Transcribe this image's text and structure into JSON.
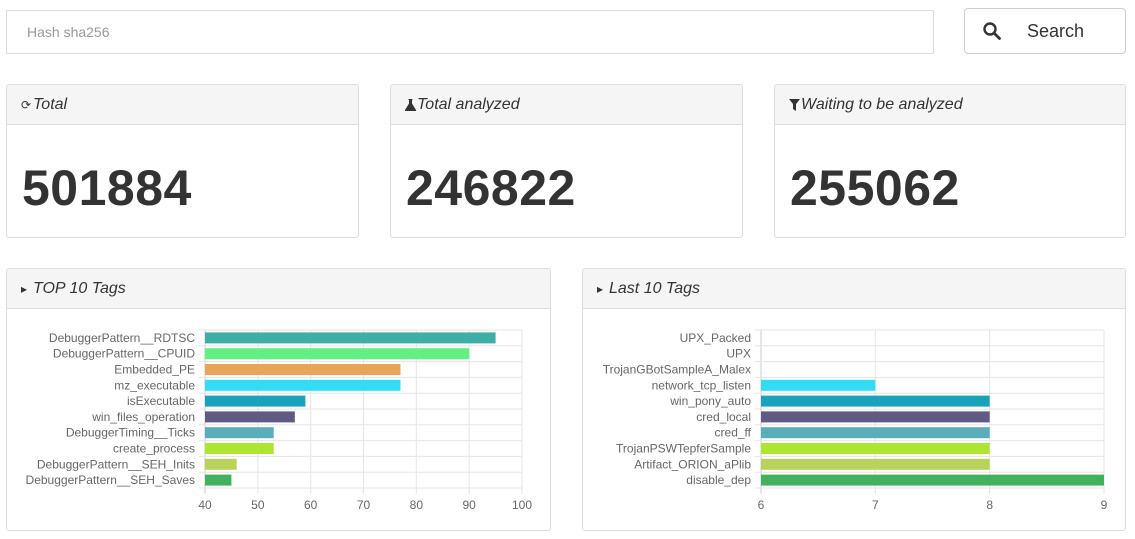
{
  "search": {
    "placeholder": "Hash sha256",
    "button_label": "Search"
  },
  "stats": [
    {
      "icon": "refresh-icon",
      "title": "Total",
      "value": "501884"
    },
    {
      "icon": "flask-icon",
      "title": "Total analyzed",
      "value": "246822"
    },
    {
      "icon": "filter-icon",
      "title": "Waiting to be analyzed",
      "value": "255062"
    }
  ],
  "chart_data": [
    {
      "type": "bar",
      "orientation": "horizontal",
      "title": "TOP 10 Tags",
      "categories": [
        "DebuggerPattern__RDTSC",
        "DebuggerPattern__CPUID",
        "Embedded_PE",
        "mz_executable",
        "isExecutable",
        "win_files_operation",
        "DebuggerTiming__Ticks",
        "create_process",
        "DebuggerPattern__SEH_Inits",
        "DebuggerPattern__SEH_Saves"
      ],
      "values": [
        95,
        90,
        77,
        77,
        59,
        57,
        53,
        53,
        46,
        45
      ],
      "colors": [
        "#3eafa6",
        "#63ef84",
        "#e8a55a",
        "#33dcf5",
        "#1aa1bb",
        "#615a85",
        "#5aaebb",
        "#aee530",
        "#b9d35a",
        "#42b05d"
      ],
      "xlim": [
        40,
        100
      ],
      "xticks": [
        40,
        50,
        60,
        70,
        80,
        90,
        100
      ],
      "grid": true
    },
    {
      "type": "bar",
      "orientation": "horizontal",
      "title": "Last 10 Tags",
      "categories": [
        "UPX_Packed",
        "UPX",
        "TrojanGBotSampleA_Malex",
        "network_tcp_listen",
        "win_pony_auto",
        "cred_local",
        "cred_ff",
        "TrojanPSWTepferSample",
        "Artifact_ORION_aPlib",
        "disable_dep"
      ],
      "values": [
        6,
        6,
        6,
        7,
        8,
        8,
        8,
        8,
        8,
        9
      ],
      "colors": [
        "#3eafa6",
        "#63ef84",
        "#e8a55a",
        "#33dcf5",
        "#1aa1bb",
        "#615a85",
        "#5aaebb",
        "#aee530",
        "#b9d35a",
        "#42b05d"
      ],
      "xlim": [
        6,
        9
      ],
      "xticks": [
        6,
        7,
        8,
        9
      ],
      "grid": true
    }
  ]
}
